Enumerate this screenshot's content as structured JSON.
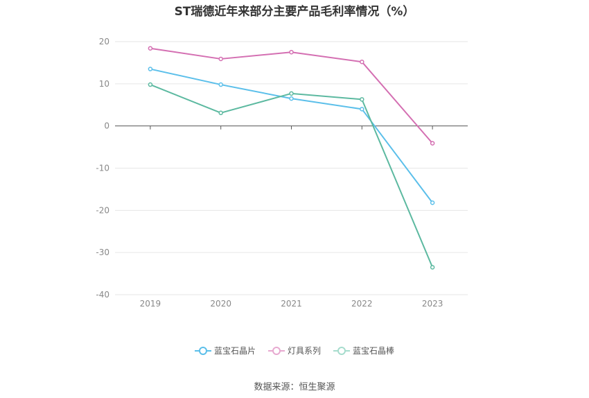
{
  "chart_data": {
    "type": "line",
    "title": "ST瑞德近年来部分主要产品毛利率情况（%）",
    "categories": [
      "2019",
      "2020",
      "2021",
      "2022",
      "2023"
    ],
    "ylim": [
      -40,
      20
    ],
    "yticks": [
      20,
      10,
      0,
      -10,
      -20,
      -30,
      -40
    ],
    "ytick_labels": [
      "20",
      "10",
      "0",
      "-10",
      "-20",
      "-30",
      "-40"
    ],
    "grid": true,
    "legend_position": "bottom",
    "series": [
      {
        "name": "蓝宝石晶片",
        "color": "#5bbfea",
        "values": [
          13.5,
          9.8,
          6.5,
          4.0,
          -18.2
        ]
      },
      {
        "name": "灯具系列",
        "color": "#d46fb2",
        "values": [
          18.4,
          15.9,
          17.5,
          15.2,
          -4.1
        ]
      },
      {
        "name": "蓝宝石晶棒",
        "color": "#5cb9a0",
        "values": [
          9.8,
          3.1,
          7.7,
          6.3,
          -33.5
        ]
      }
    ]
  },
  "source": "数据来源：恒生聚源"
}
